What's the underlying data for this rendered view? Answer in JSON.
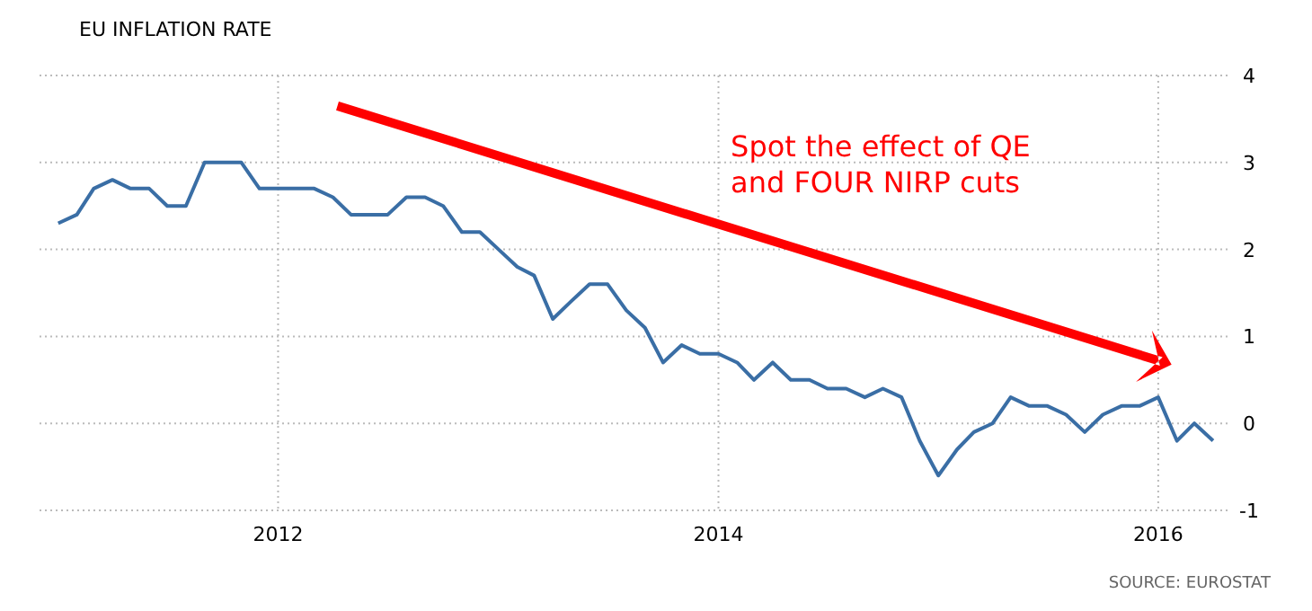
{
  "chart_data": {
    "type": "line",
    "title": "EU INFLATION RATE",
    "x": [
      "2011-01",
      "2011-02",
      "2011-03",
      "2011-04",
      "2011-05",
      "2011-06",
      "2011-07",
      "2011-08",
      "2011-09",
      "2011-10",
      "2011-11",
      "2011-12",
      "2012-01",
      "2012-02",
      "2012-03",
      "2012-04",
      "2012-05",
      "2012-06",
      "2012-07",
      "2012-08",
      "2012-09",
      "2012-10",
      "2012-11",
      "2012-12",
      "2013-01",
      "2013-02",
      "2013-03",
      "2013-04",
      "2013-05",
      "2013-06",
      "2013-07",
      "2013-08",
      "2013-09",
      "2013-10",
      "2013-11",
      "2013-12",
      "2014-01",
      "2014-02",
      "2014-03",
      "2014-04",
      "2014-05",
      "2014-06",
      "2014-07",
      "2014-08",
      "2014-09",
      "2014-10",
      "2014-11",
      "2014-12",
      "2015-01",
      "2015-02",
      "2015-03",
      "2015-04",
      "2015-05",
      "2015-06",
      "2015-07",
      "2015-08",
      "2015-09",
      "2015-10",
      "2015-11",
      "2015-12",
      "2016-01",
      "2016-02",
      "2016-03",
      "2016-04"
    ],
    "series": [
      {
        "color": "#3a6ea5",
        "values": [
          2.3,
          2.4,
          2.7,
          2.8,
          2.7,
          2.7,
          2.5,
          2.5,
          3.0,
          3.0,
          3.0,
          2.7,
          2.7,
          2.7,
          2.7,
          2.6,
          2.4,
          2.4,
          2.4,
          2.6,
          2.6,
          2.5,
          2.2,
          2.2,
          2.0,
          1.8,
          1.7,
          1.2,
          1.4,
          1.6,
          1.6,
          1.3,
          1.1,
          0.7,
          0.9,
          0.8,
          0.8,
          0.7,
          0.5,
          0.7,
          0.5,
          0.5,
          0.4,
          0.4,
          0.3,
          0.4,
          0.3,
          -0.2,
          -0.6,
          -0.3,
          -0.1,
          0.0,
          0.3,
          0.2,
          0.2,
          0.1,
          -0.1,
          0.1,
          0.2,
          0.2,
          0.3,
          -0.2,
          0.0,
          -0.2
        ]
      }
    ],
    "xlim": [
      "2010-12-01",
      "2016-05-01"
    ],
    "xticks": [
      {
        "value": "2012-01",
        "label": "2012"
      },
      {
        "value": "2014-01",
        "label": "2014"
      },
      {
        "value": "2016-01",
        "label": "2016"
      }
    ],
    "ylim": [
      -1,
      4
    ],
    "yticks": [
      -1,
      0,
      1,
      2,
      3,
      4
    ],
    "grid": true,
    "annotations": [
      "Spot the effect of QE\nand FOUR NIRP cuts",
      "SOURCE: EUROSTAT"
    ]
  }
}
